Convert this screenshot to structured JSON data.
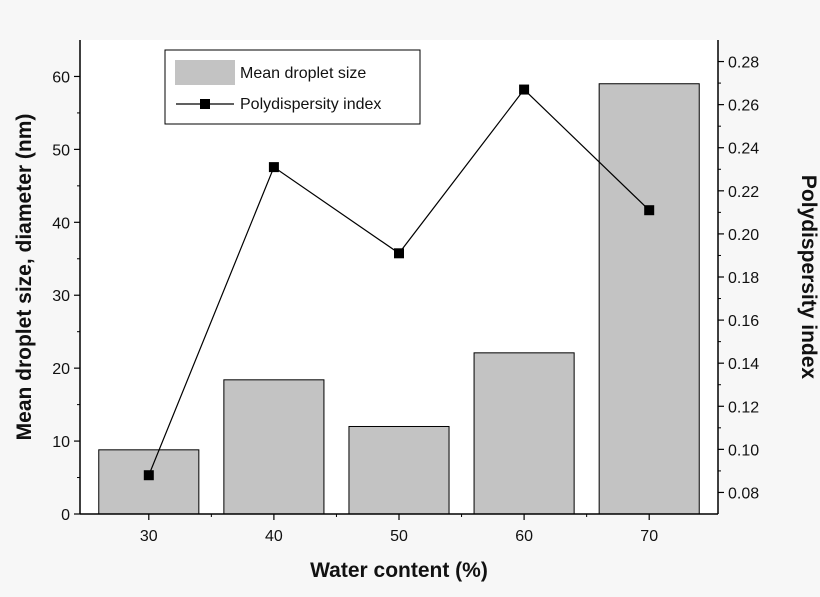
{
  "chart_data": {
    "type": "bar",
    "categories": [
      "30",
      "40",
      "50",
      "60",
      "70"
    ],
    "xlabel": "Water content (%)",
    "ylabel": "Mean droplet size, diameter (nm)",
    "y2label": "Polydispersity index",
    "ylim": [
      0,
      65
    ],
    "y2lim": [
      0.07,
      0.29
    ],
    "yticks": [
      "0",
      "10",
      "20",
      "30",
      "40",
      "50",
      "60"
    ],
    "y2ticks": [
      "0.08",
      "0.10",
      "0.12",
      "0.14",
      "0.16",
      "0.18",
      "0.20",
      "0.22",
      "0.24",
      "0.26",
      "0.28"
    ],
    "grid": false,
    "legend_position": "top-left",
    "series": [
      {
        "name": "Mean droplet size",
        "type": "bar",
        "axis": "left",
        "values": [
          8.8,
          18.4,
          12.0,
          22.1,
          59.0
        ],
        "color": "#c3c3c3"
      },
      {
        "name": "Polydispersity index",
        "type": "line",
        "axis": "right",
        "values": [
          0.088,
          0.231,
          0.191,
          0.267,
          0.211
        ],
        "color": "#000000"
      }
    ]
  }
}
